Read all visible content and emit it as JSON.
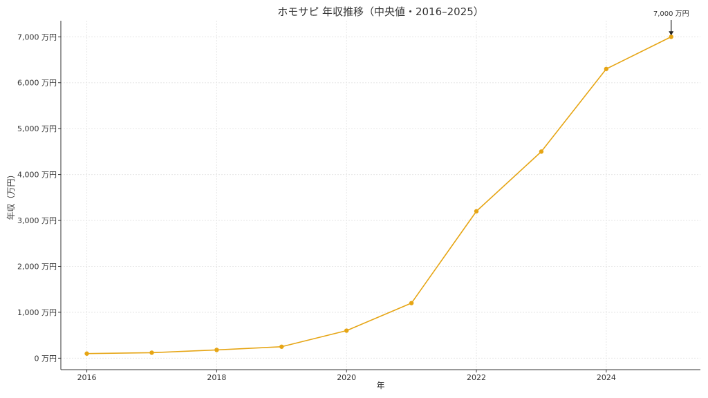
{
  "chart_data": {
    "type": "line",
    "title": "ホモサピ 年収推移（中央値・2016–2025）",
    "xlabel": "年",
    "ylabel": "年収（万円）",
    "x": [
      2016,
      2017,
      2018,
      2019,
      2020,
      2021,
      2022,
      2023,
      2024,
      2025
    ],
    "series": [
      {
        "values": [
          100,
          120,
          180,
          250,
          600,
          1200,
          3200,
          4500,
          6300,
          7000
        ]
      }
    ],
    "xlim": [
      2015.6,
      2025.45
    ],
    "ylim": [
      -250,
      7350
    ],
    "x_ticks": [
      2016,
      2018,
      2020,
      2022,
      2024
    ],
    "x_tick_labels": [
      "2016",
      "2018",
      "2020",
      "2022",
      "2024"
    ],
    "y_ticks": [
      0,
      1000,
      2000,
      3000,
      4000,
      5000,
      6000,
      7000
    ],
    "y_tick_labels": [
      "0 万円",
      "1,000 万円",
      "2,000 万円",
      "3,000 万円",
      "4,000 万円",
      "5,000 万円",
      "6,000 万円",
      "7,000 万円"
    ],
    "grid": true,
    "line_color": "#E6A514",
    "annotation": {
      "x": 2025,
      "y": 7000,
      "text": "7,000 万円"
    }
  }
}
